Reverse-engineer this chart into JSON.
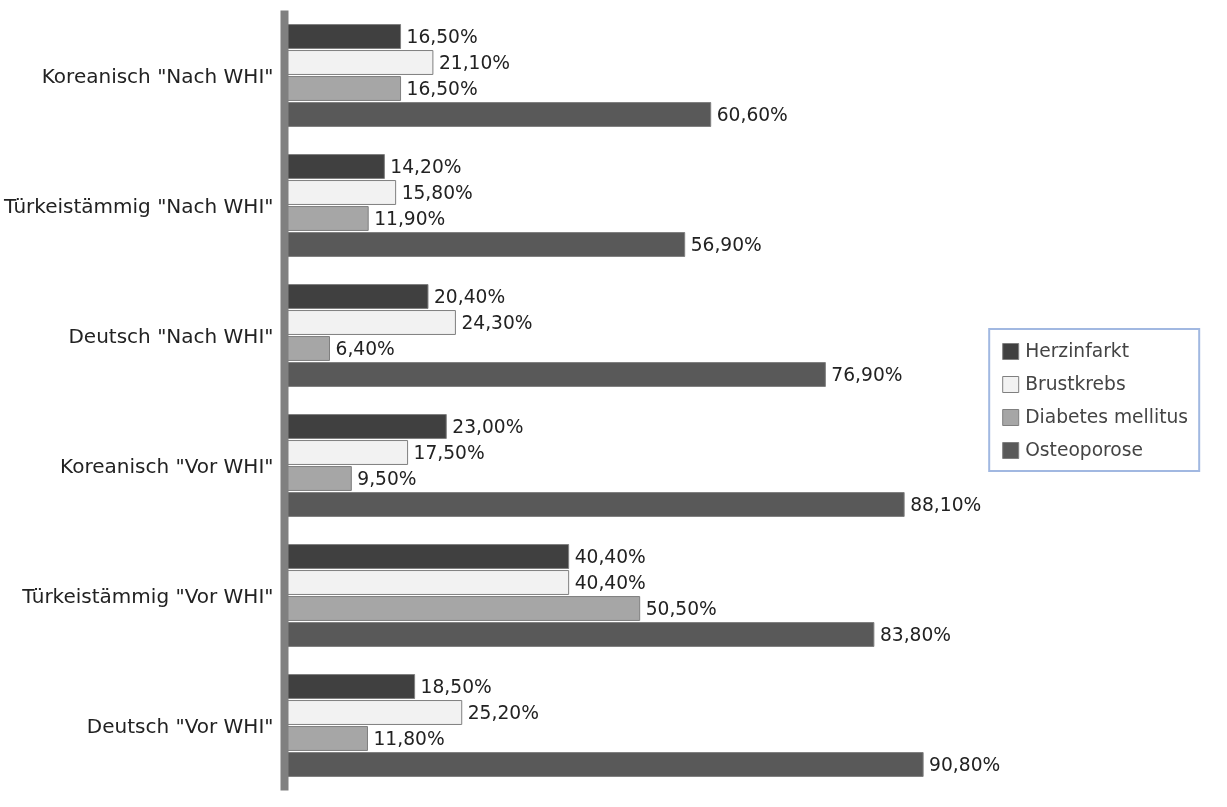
{
  "chart_data": {
    "type": "bar",
    "orientation": "horizontal",
    "categories": [
      "Koreanisch \"Nach WHI\"",
      "Türkeistämmig \"Nach WHI\"",
      "Deutsch \"Nach WHI\"",
      "Koreanisch \"Vor WHI\"",
      "Türkeistämmig \"Vor WHI\"",
      "Deutsch \"Vor WHI\""
    ],
    "series": [
      {
        "name": "Herzinfarkt",
        "color": "#404040",
        "values": [
          16.5,
          14.2,
          20.4,
          23.0,
          40.4,
          18.5
        ],
        "value_labels": [
          "16,50%",
          "14,20%",
          "20,40%",
          "23,00%",
          "40,40%",
          "18,50%"
        ]
      },
      {
        "name": "Brustkrebs",
        "color": "#f2f2f2",
        "values": [
          21.1,
          15.8,
          24.3,
          17.5,
          40.4,
          25.2
        ],
        "value_labels": [
          "21,10%",
          "15,80%",
          "24,30%",
          "17,50%",
          "40,40%",
          "25,20%"
        ]
      },
      {
        "name": "Diabetes mellitus",
        "color": "#a6a6a6",
        "values": [
          16.5,
          11.9,
          6.4,
          9.5,
          50.5,
          11.8
        ],
        "value_labels": [
          "16,50%",
          "11,90%",
          "6,40%",
          "9,50%",
          "50,50%",
          "11,80%"
        ]
      },
      {
        "name": "Osteoporose",
        "color": "#595959",
        "values": [
          60.6,
          56.9,
          76.9,
          88.1,
          83.8,
          90.8
        ],
        "value_labels": [
          "60,60%",
          "56,90%",
          "76,90%",
          "88,10%",
          "83,80%",
          "90,80%"
        ]
      }
    ],
    "legend": "right",
    "grid": false,
    "tick_labels": "y"
  }
}
